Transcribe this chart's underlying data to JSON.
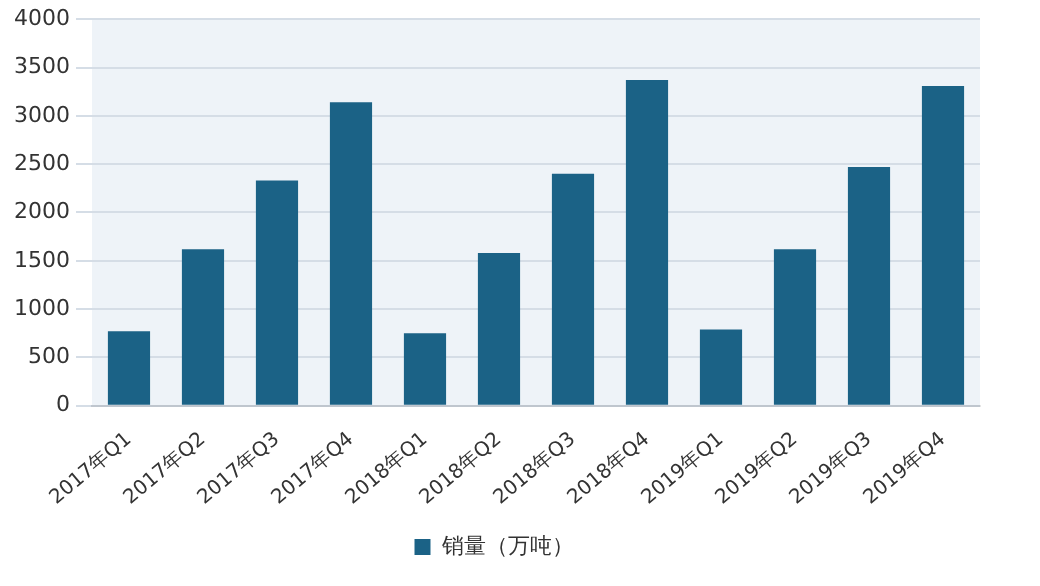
{
  "chart_data": {
    "type": "bar",
    "categories": [
      "2017年Q1",
      "2017年Q2",
      "2017年Q3",
      "2017年Q4",
      "2018年Q1",
      "2018年Q2",
      "2018年Q3",
      "2018年Q4",
      "2019年Q1",
      "2019年Q2",
      "2019年Q3",
      "2019年Q4"
    ],
    "series": [
      {
        "name": "销量（万吨）",
        "color": "#1b6286",
        "values": [
          770,
          1620,
          2330,
          3140,
          750,
          1580,
          2400,
          3370,
          790,
          1620,
          2470,
          3310
        ]
      }
    ],
    "ylim": [
      0,
      4000
    ],
    "yticks": [
      0,
      500,
      1000,
      1500,
      2000,
      2500,
      3000,
      3500,
      4000
    ],
    "grid": "y",
    "legend": "bottom"
  }
}
